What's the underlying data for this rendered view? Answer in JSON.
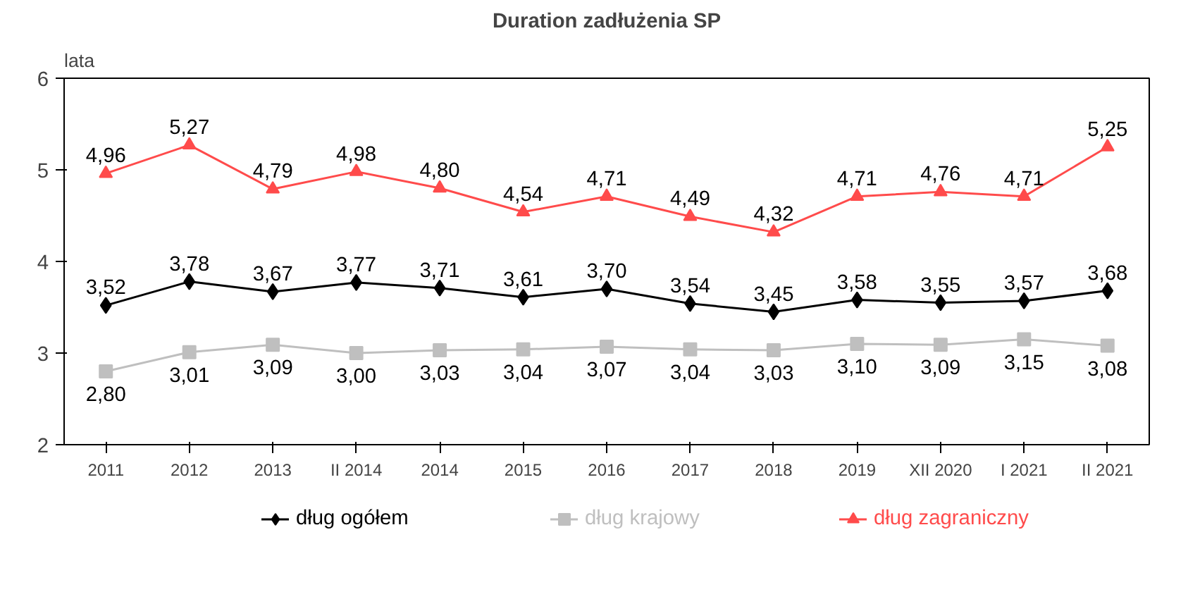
{
  "chart_data": {
    "type": "line",
    "title": "Duration zadłużenia SP",
    "ylabel": "lata",
    "categories": [
      "2011",
      "2012",
      "2013",
      "II 2014",
      "2014",
      "2015",
      "2016",
      "2017",
      "2018",
      "2019",
      "XII 2020",
      "I 2021",
      "II 2021"
    ],
    "series": [
      {
        "name": "dług ogółem",
        "color": "#000000",
        "marker": "diamond",
        "values": [
          3.52,
          3.78,
          3.67,
          3.77,
          3.71,
          3.61,
          3.7,
          3.54,
          3.45,
          3.58,
          3.55,
          3.57,
          3.68
        ],
        "value_labels": [
          "3,52",
          "3,78",
          "3,67",
          "3,77",
          "3,71",
          "3,61",
          "3,70",
          "3,54",
          "3,45",
          "3,58",
          "3,55",
          "3,57",
          "3,68"
        ]
      },
      {
        "name": "dług krajowy",
        "color": "#bfbfbf",
        "marker": "square",
        "values": [
          2.8,
          3.01,
          3.09,
          3.0,
          3.03,
          3.04,
          3.07,
          3.04,
          3.03,
          3.1,
          3.09,
          3.15,
          3.08
        ],
        "value_labels": [
          "2,80",
          "3,01",
          "3,09",
          "3,00",
          "3,03",
          "3,04",
          "3,07",
          "3,04",
          "3,03",
          "3,10",
          "3,09",
          "3,15",
          "3,08"
        ]
      },
      {
        "name": "dług zagraniczny",
        "color": "#ff4b4b",
        "marker": "triangle",
        "values": [
          4.96,
          5.27,
          4.79,
          4.98,
          4.8,
          4.54,
          4.71,
          4.49,
          4.32,
          4.71,
          4.76,
          4.71,
          5.25
        ],
        "value_labels": [
          "4,96",
          "5,27",
          "4,79",
          "4,98",
          "4,80",
          "4,54",
          "4,71",
          "4,49",
          "4,32",
          "4,71",
          "4,76",
          "4,71",
          "5,25"
        ]
      }
    ],
    "ylim": [
      2,
      6
    ],
    "yticks": [
      2,
      3,
      4,
      5,
      6
    ],
    "grid": false,
    "legend": "bottom"
  }
}
